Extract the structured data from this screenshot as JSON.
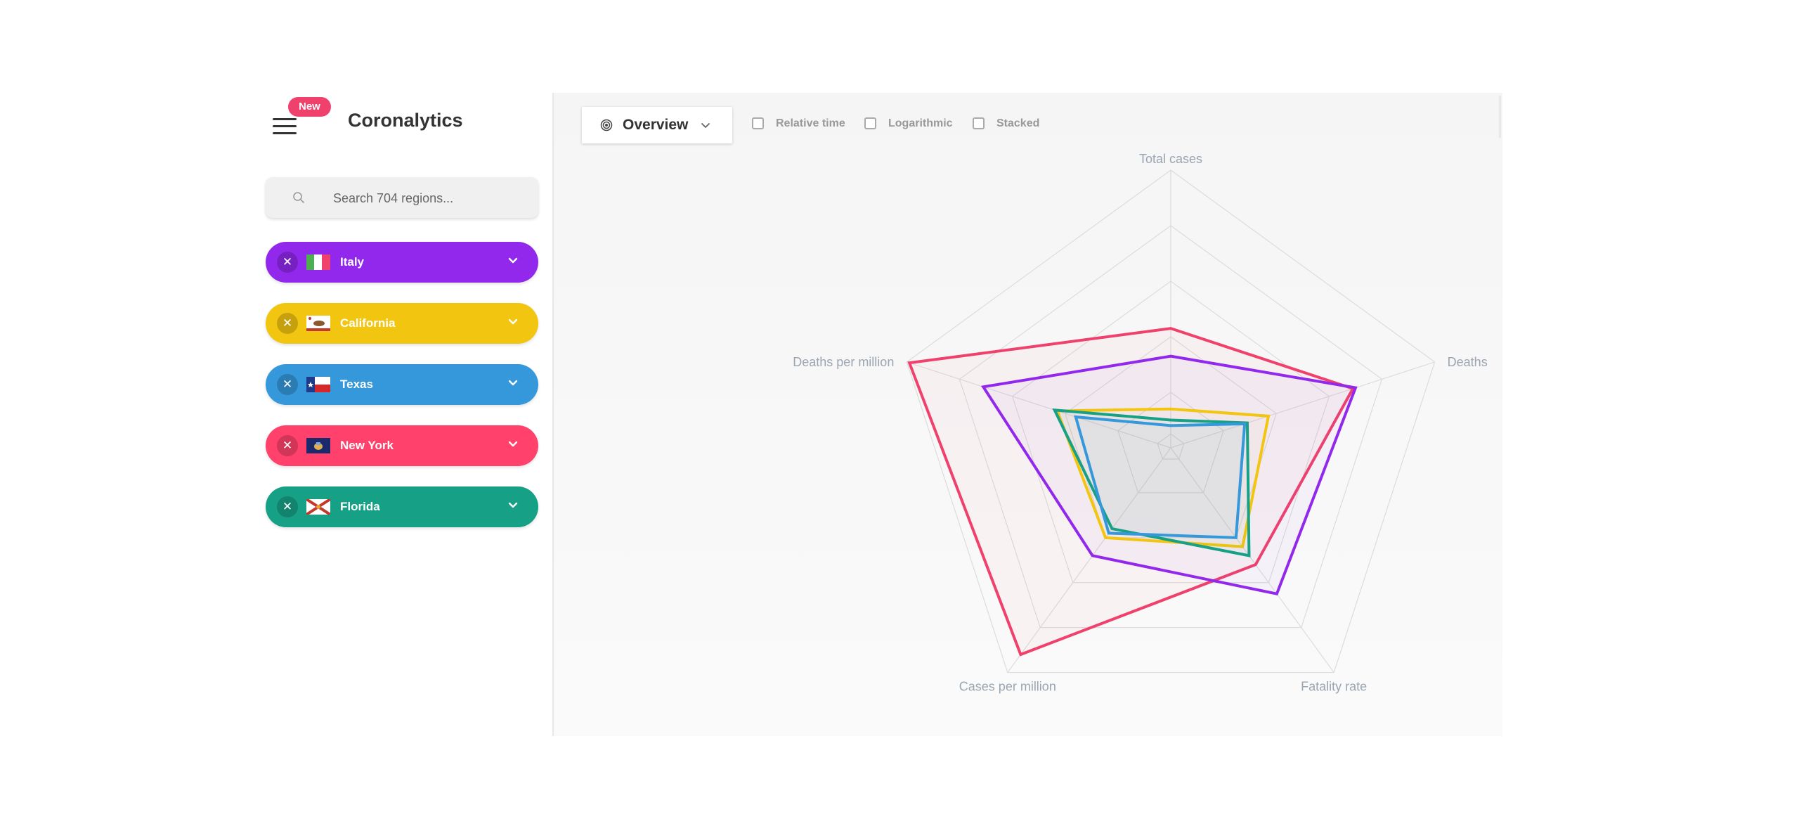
{
  "app": {
    "title": "Coronalytics",
    "badge": "New"
  },
  "search": {
    "placeholder": "Search 704 regions..."
  },
  "regions": [
    {
      "name": "Italy",
      "color": "#9228ec",
      "flag": "italy-flag-icon"
    },
    {
      "name": "California",
      "color": "#f2c511",
      "flag": "california-flag-icon"
    },
    {
      "name": "Texas",
      "color": "#3498db",
      "flag": "texas-flag-icon"
    },
    {
      "name": "New York",
      "color": "#ff416c",
      "flag": "new-york-flag-icon"
    },
    {
      "name": "Florida",
      "color": "#16a085",
      "flag": "florida-flag-icon"
    }
  ],
  "toolbar": {
    "view_label": "Overview",
    "options": [
      "Relative time",
      "Logarithmic",
      "Stacked"
    ]
  },
  "chart_data": {
    "type": "radar",
    "axes": [
      "Total cases",
      "Deaths",
      "Fatality rate",
      "Cases per million",
      "Deaths per million"
    ],
    "levels": 5,
    "scale": [
      0,
      1
    ],
    "series": [
      {
        "name": "New York",
        "color": "#f0416c",
        "values": [
          0.43,
          0.69,
          0.52,
          0.92,
          0.99
        ]
      },
      {
        "name": "Italy",
        "color": "#9228ec",
        "values": [
          0.33,
          0.7,
          0.65,
          0.48,
          0.71
        ]
      },
      {
        "name": "California",
        "color": "#f2c511",
        "values": [
          0.14,
          0.37,
          0.44,
          0.4,
          0.43
        ]
      },
      {
        "name": "Florida",
        "color": "#16a085",
        "values": [
          0.1,
          0.29,
          0.48,
          0.36,
          0.44
        ]
      },
      {
        "name": "Texas",
        "color": "#3498db",
        "values": [
          0.08,
          0.28,
          0.4,
          0.38,
          0.36
        ]
      }
    ]
  }
}
